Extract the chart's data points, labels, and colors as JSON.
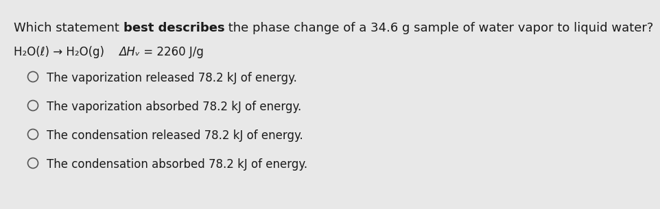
{
  "bg_color": "#e8e8e8",
  "part1": "Which statement ",
  "part2": "best describes",
  "part3": " the phase change of a 34.6 g sample of water vapor to liquid water?",
  "eq_part1": "H₂O(ℓ) → H₂O(g)    ",
  "eq_part2": "ΔHᵥ",
  "eq_part3": " = 2260 J/g",
  "options": [
    "The vaporization released 78.2 kJ of energy.",
    "The vaporization absorbed 78.2 kJ of energy.",
    "The condensation released 78.2 kJ of energy.",
    "The condensation absorbed 78.2 kJ of energy."
  ],
  "font_size_title": 13,
  "font_size_eq": 12,
  "font_size_options": 12,
  "text_color": "#1a1a1a",
  "circle_color": "#555555"
}
